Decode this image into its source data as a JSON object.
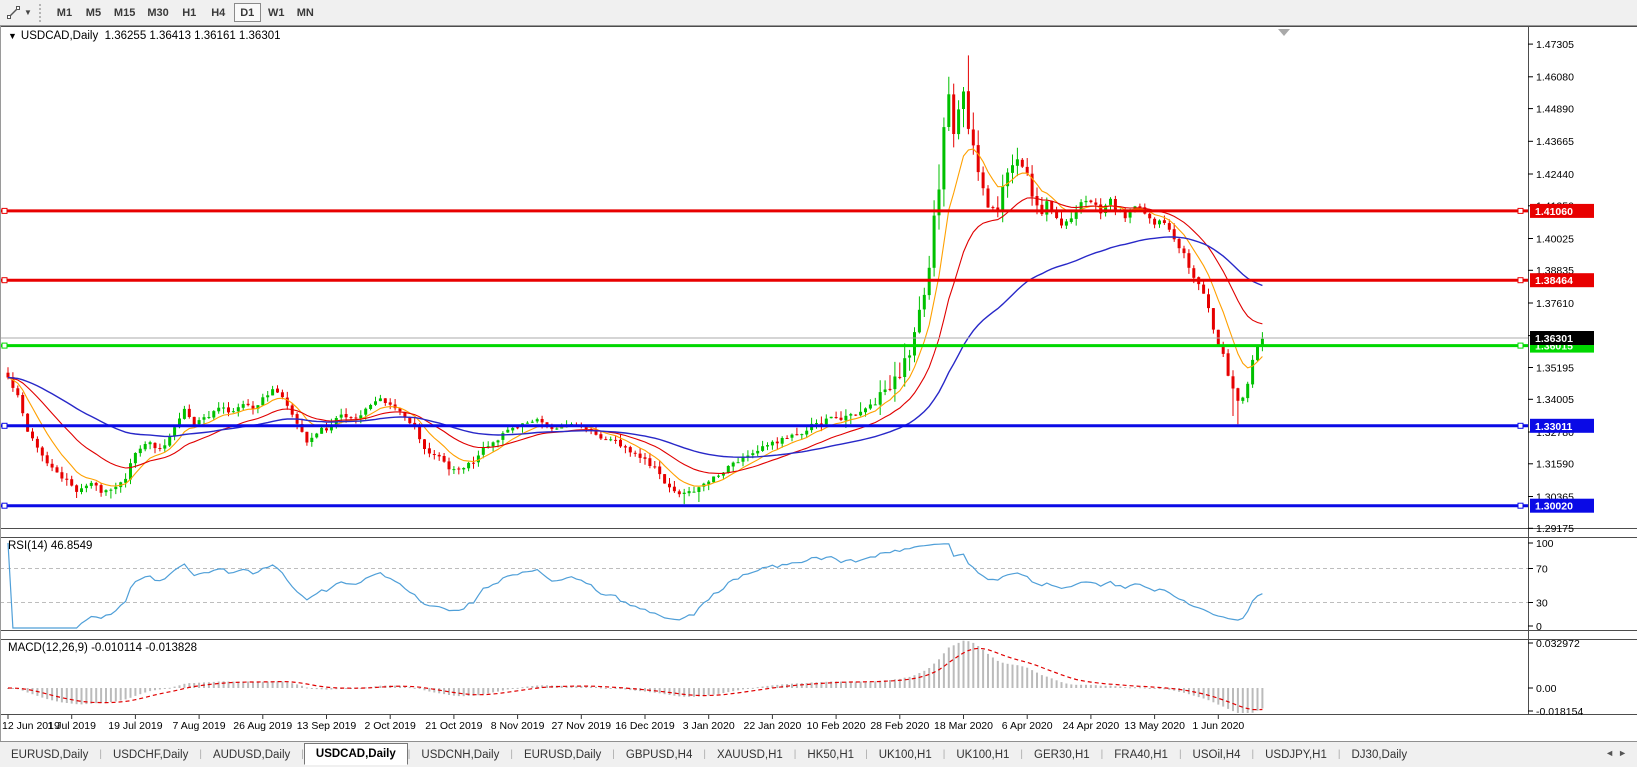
{
  "toolbar": {
    "cursor_tool": "trendline-cursor",
    "timeframes": [
      "M1",
      "M5",
      "M15",
      "M30",
      "H1",
      "H4",
      "D1",
      "W1",
      "MN"
    ],
    "active_timeframe": "D1"
  },
  "chart_header": {
    "collapse_caret": "▼",
    "symbol": "USDCAD,Daily",
    "ohlc": "1.36255 1.36413 1.36161 1.36301"
  },
  "indicator_labels": {
    "rsi_name": "RSI(14)",
    "rsi_value": "46.8549",
    "macd_name": "MACD(12,26,9)",
    "macd_values": "-0.010114 -0.013828"
  },
  "colors": {
    "candle_up": "#00C000",
    "candle_down": "#E60000",
    "ema_fast": "#FFA000",
    "ema_mid": "#E00000",
    "ema_slow": "#2828C8",
    "rsi_line": "#4F9FD8",
    "macd_hist": "#BBBBBB",
    "macd_signal": "#E00000",
    "level_red": "#E80000",
    "level_green": "#00D800",
    "level_blue": "#0A0AE6",
    "current_price_bg": "#000000",
    "current_price_line": "#ABABAB"
  },
  "chart_data": {
    "type": "candlestick",
    "symbol": "USDCAD",
    "timeframe": "Daily",
    "bar_count": 257,
    "bars_per_date_label": 13,
    "price_axis_ticks": [
      "1.47305",
      "1.46080",
      "1.44890",
      "1.43665",
      "1.42440",
      "1.41250",
      "1.40025",
      "1.38835",
      "1.37610",
      "1.36390",
      "1.35195",
      "1.34005",
      "1.32780",
      "1.31590",
      "1.30365",
      "1.29175"
    ],
    "date_axis_labels": [
      "12 Jun 2019",
      "1 Jul 2019",
      "19 Jul 2019",
      "7 Aug 2019",
      "26 Aug 2019",
      "13 Sep 2019",
      "2 Oct 2019",
      "21 Oct 2019",
      "8 Nov 2019",
      "27 Nov 2019",
      "16 Dec 2019",
      "3 Jan 2020",
      "22 Jan 2020",
      "10 Feb 2020",
      "28 Feb 2020",
      "18 Mar 2020",
      "6 Apr 2020",
      "24 Apr 2020",
      "13 May 2020",
      "1 Jun 2020"
    ],
    "levels": [
      {
        "price": 1.4106,
        "label": "1.41060",
        "color_key": "level_red"
      },
      {
        "price": 1.38464,
        "label": "1.38464",
        "color_key": "level_red"
      },
      {
        "price": 1.36015,
        "label": "1.36015",
        "color_key": "level_green"
      },
      {
        "price": 1.33011,
        "label": "1.33011",
        "color_key": "level_blue"
      },
      {
        "price": 1.3002,
        "label": "1.30020",
        "color_key": "level_blue"
      }
    ],
    "current_price": {
      "value": 1.36301,
      "label": "1.36301"
    },
    "price_anchors": [
      [
        0,
        1.348
      ],
      [
        2,
        1.3417
      ],
      [
        4,
        1.3286
      ],
      [
        6,
        1.3226
      ],
      [
        8,
        1.3166
      ],
      [
        11,
        1.3106
      ],
      [
        14,
        1.3061
      ],
      [
        17,
        1.3087
      ],
      [
        19,
        1.3053
      ],
      [
        21,
        1.3068
      ],
      [
        24,
        1.3106
      ],
      [
        26,
        1.3203
      ],
      [
        29,
        1.3237
      ],
      [
        31,
        1.3211
      ],
      [
        33,
        1.3256
      ],
      [
        36,
        1.3368
      ],
      [
        38,
        1.3304
      ],
      [
        41,
        1.3342
      ],
      [
        43,
        1.3368
      ],
      [
        46,
        1.3349
      ],
      [
        48,
        1.3387
      ],
      [
        50,
        1.3364
      ],
      [
        52,
        1.3405
      ],
      [
        54,
        1.3443
      ],
      [
        56,
        1.3405
      ],
      [
        59,
        1.3304
      ],
      [
        61,
        1.3244
      ],
      [
        63,
        1.3278
      ],
      [
        66,
        1.33
      ],
      [
        68,
        1.3346
      ],
      [
        71,
        1.3327
      ],
      [
        73,
        1.3372
      ],
      [
        76,
        1.3398
      ],
      [
        78,
        1.3387
      ],
      [
        80,
        1.3349
      ],
      [
        83,
        1.3289
      ],
      [
        85,
        1.3214
      ],
      [
        88,
        1.3181
      ],
      [
        90,
        1.3143
      ],
      [
        92,
        1.3132
      ],
      [
        95,
        1.3169
      ],
      [
        97,
        1.3214
      ],
      [
        100,
        1.3252
      ],
      [
        102,
        1.3282
      ],
      [
        104,
        1.3297
      ],
      [
        107,
        1.3323
      ],
      [
        109,
        1.3312
      ],
      [
        112,
        1.3286
      ],
      [
        114,
        1.3304
      ],
      [
        116,
        1.33
      ],
      [
        119,
        1.3282
      ],
      [
        121,
        1.3256
      ],
      [
        124,
        1.3241
      ],
      [
        127,
        1.3207
      ],
      [
        129,
        1.3184
      ],
      [
        132,
        1.3143
      ],
      [
        134,
        1.3087
      ],
      [
        136,
        1.3057
      ],
      [
        138,
        1.3046
      ],
      [
        140,
        1.3061
      ],
      [
        142,
        1.308
      ],
      [
        144,
        1.311
      ],
      [
        147,
        1.3147
      ],
      [
        150,
        1.3184
      ],
      [
        152,
        1.3203
      ],
      [
        155,
        1.3226
      ],
      [
        157,
        1.3244
      ],
      [
        160,
        1.3259
      ],
      [
        162,
        1.3274
      ],
      [
        164,
        1.33
      ],
      [
        167,
        1.3323
      ],
      [
        170,
        1.333
      ],
      [
        172,
        1.3342
      ],
      [
        174,
        1.3353
      ],
      [
        177,
        1.3398
      ],
      [
        180,
        1.3443
      ],
      [
        182,
        1.3503
      ],
      [
        184,
        1.3577
      ],
      [
        185,
        1.3652
      ],
      [
        187,
        1.3765
      ],
      [
        188,
        1.3914
      ],
      [
        190,
        1.4203
      ],
      [
        191,
        1.4427
      ],
      [
        192,
        1.4536
      ],
      [
        193,
        1.4401
      ],
      [
        194,
        1.4476
      ],
      [
        195,
        1.4532
      ],
      [
        197,
        1.4326
      ],
      [
        199,
        1.4214
      ],
      [
        200,
        1.4139
      ],
      [
        202,
        1.4087
      ],
      [
        203,
        1.4199
      ],
      [
        205,
        1.4274
      ],
      [
        206,
        1.4311
      ],
      [
        208,
        1.4236
      ],
      [
        209,
        1.4162
      ],
      [
        211,
        1.4105
      ],
      [
        212,
        1.4143
      ],
      [
        214,
        1.4075
      ],
      [
        215,
        1.4049
      ],
      [
        217,
        1.4087
      ],
      [
        219,
        1.4135
      ],
      [
        220,
        1.415
      ],
      [
        222,
        1.4124
      ],
      [
        223,
        1.4105
      ],
      [
        225,
        1.4143
      ],
      [
        226,
        1.4113
      ],
      [
        228,
        1.4087
      ],
      [
        229,
        1.4105
      ],
      [
        231,
        1.4124
      ],
      [
        232,
        1.4098
      ],
      [
        234,
        1.4061
      ],
      [
        235,
        1.4075
      ],
      [
        237,
        1.4038
      ],
      [
        238,
        1.4001
      ],
      [
        240,
        1.3948
      ],
      [
        241,
        1.3888
      ],
      [
        243,
        1.3825
      ],
      [
        245,
        1.375
      ],
      [
        246,
        1.3656
      ],
      [
        248,
        1.3563
      ],
      [
        249,
        1.3488
      ],
      [
        250,
        1.3432
      ],
      [
        251,
        1.3394
      ],
      [
        252,
        1.3413
      ],
      [
        253,
        1.345
      ],
      [
        254,
        1.3544
      ],
      [
        255,
        1.36
      ],
      [
        256,
        1.363
      ]
    ],
    "wick_highs": [
      [
        190,
        1.428
      ],
      [
        192,
        1.4608
      ],
      [
        194,
        1.452
      ],
      [
        196,
        1.4688
      ],
      [
        256,
        1.3652
      ]
    ],
    "wick_lows": [
      [
        14,
        1.3031
      ],
      [
        21,
        1.3029
      ],
      [
        138,
        1.3008
      ],
      [
        141,
        1.3016
      ],
      [
        250,
        1.3338
      ],
      [
        251,
        1.3307
      ]
    ],
    "overlays": [
      {
        "name": "EMA fast",
        "period": 8,
        "color_key": "ema_fast"
      },
      {
        "name": "EMA mid",
        "period": 21,
        "color_key": "ema_mid"
      },
      {
        "name": "EMA slow",
        "period": 55,
        "color_key": "ema_slow"
      }
    ],
    "rsi": {
      "period": 14,
      "axis_ticks": [
        "100",
        "70",
        "30",
        "0"
      ],
      "levels": [
        70,
        30
      ],
      "last_value": 46.8549
    },
    "macd": {
      "fast": 12,
      "slow": 26,
      "signal": 9,
      "axis_ticks": [
        "0.032972",
        "0.00",
        "-0.018154"
      ],
      "last_macd": -0.010114,
      "last_signal": -0.013828
    }
  },
  "tabbar": {
    "tabs": [
      "EURUSD,Daily",
      "USDCHF,Daily",
      "AUDUSD,Daily",
      "USDCAD,Daily",
      "USDCNH,Daily",
      "EURUSD,Daily",
      "GBPUSD,H4",
      "XAUUSD,H1",
      "HK50,H1",
      "UK100,H1",
      "UK100,H1",
      "GER30,H1",
      "FRA40,H1",
      "USOil,H4",
      "USDJPY,H1",
      "DJ30,Daily"
    ],
    "active_index": 3,
    "scroll_left": "◄",
    "scroll_right": "►"
  }
}
